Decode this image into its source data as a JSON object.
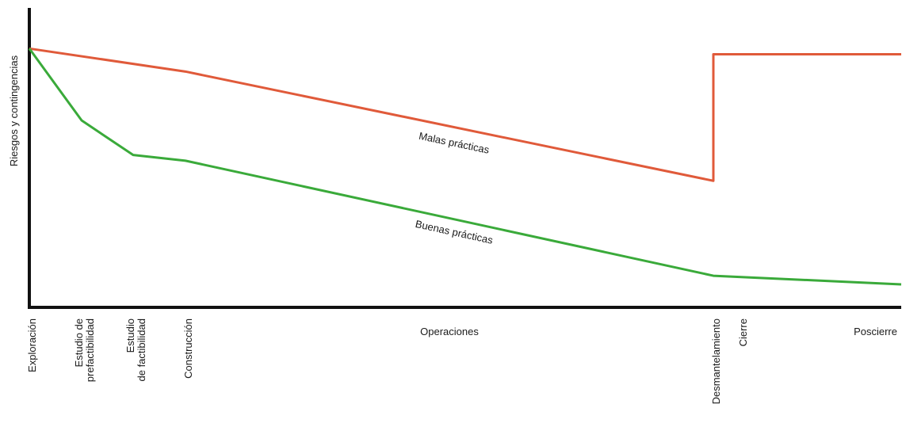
{
  "chart_data": {
    "type": "line",
    "title": "",
    "ylabel": "Riesgos y contingencias",
    "xlabel": "",
    "grid": false,
    "x_categories": [
      "Exploración",
      "Estudio de prefactibilidad",
      "Estudio de factibilidad",
      "Construcción",
      "Operaciones",
      "Desmantelamiento",
      "Cierre",
      "Poscierre"
    ],
    "x_ticks": [
      {
        "lines": [
          "Exploración"
        ],
        "x": 0,
        "orient": "vertical"
      },
      {
        "lines": [
          "Estudio de",
          "prefactibilidad"
        ],
        "x": 1,
        "orient": "vertical"
      },
      {
        "lines": [
          "Estudio",
          "de factibilidad"
        ],
        "x": 2,
        "orient": "vertical"
      },
      {
        "lines": [
          "Construcción"
        ],
        "x": 3,
        "orient": "vertical"
      },
      {
        "lines": [
          "Operaciones"
        ],
        "x": 4,
        "orient": "horizontal"
      },
      {
        "lines": [
          "Desmantelamiento"
        ],
        "x": 5,
        "orient": "vertical"
      },
      {
        "lines": [
          "Cierre"
        ],
        "x": 6,
        "orient": "vertical"
      },
      {
        "lines": [
          "Poscierre"
        ],
        "x": 7,
        "orient": "horizontal"
      }
    ],
    "xlim": [
      0,
      7
    ],
    "ylim": [
      0,
      100
    ],
    "series": [
      {
        "name": "Malas prácticas",
        "color": "#e05a3a",
        "points": [
          [
            0,
            90
          ],
          [
            3,
            82
          ],
          [
            5,
            44
          ],
          [
            5,
            88
          ],
          [
            7,
            88
          ]
        ],
        "label_at": [
          4,
          56
        ]
      },
      {
        "name": "Buenas prácticas",
        "color": "#3aaa3a",
        "points": [
          [
            0,
            90
          ],
          [
            1,
            65
          ],
          [
            2,
            53
          ],
          [
            3,
            51
          ],
          [
            5,
            11
          ],
          [
            7,
            8
          ]
        ],
        "label_at": [
          4,
          25
        ]
      }
    ]
  }
}
